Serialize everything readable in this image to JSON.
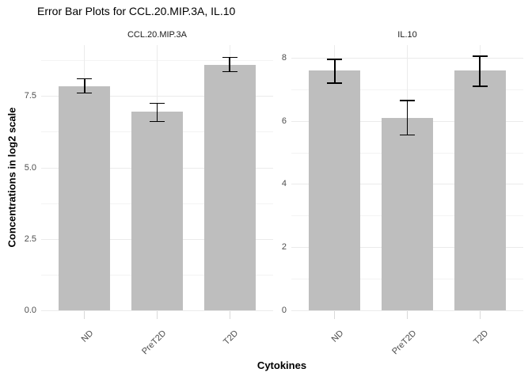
{
  "colors": {
    "background": "#ffffff",
    "bar_fill": "#bebebe",
    "grid_major": "#ebebeb",
    "grid_minor": "#f3f3f3",
    "error_bar": "#000000",
    "tick_label": "#4d4d4d",
    "tick_mark": "#d9d9d9",
    "strip_text": "#1a1a1a",
    "title_text": "#000000"
  },
  "chart_data": {
    "type": "bar",
    "title": "Error Bar Plots for CCL.20.MIP.3A, IL.10",
    "xlabel": "Cytokines",
    "ylabel": "Concentrations in log2 scale",
    "categories": [
      "ND",
      "PreT2D",
      "T2D"
    ],
    "grid": true,
    "legend": false,
    "error_bars": true,
    "facets": [
      {
        "label": "CCL.20.MIP.3A",
        "values": [
          7.85,
          6.95,
          8.6
        ],
        "error_low": [
          7.6,
          6.6,
          8.35
        ],
        "error_high": [
          8.1,
          7.25,
          8.85
        ],
        "ylim": [
          0,
          9.28
        ],
        "y_major_ticks": [
          0.0,
          2.5,
          5.0,
          7.5
        ],
        "y_tick_labels": [
          "0.0",
          "2.5",
          "5.0",
          "7.5"
        ],
        "y_minor_ticks": [
          1.25,
          3.75,
          6.25,
          8.75
        ]
      },
      {
        "label": "IL.10",
        "values": [
          7.6,
          6.1,
          7.6
        ],
        "error_low": [
          7.2,
          5.55,
          7.1
        ],
        "error_high": [
          7.95,
          6.65,
          8.05
        ],
        "ylim": [
          0,
          8.4
        ],
        "y_major_ticks": [
          0,
          2,
          4,
          6,
          8
        ],
        "y_tick_labels": [
          "0",
          "2",
          "4",
          "6",
          "8"
        ],
        "y_minor_ticks": [
          1,
          3,
          5,
          7
        ]
      }
    ]
  }
}
